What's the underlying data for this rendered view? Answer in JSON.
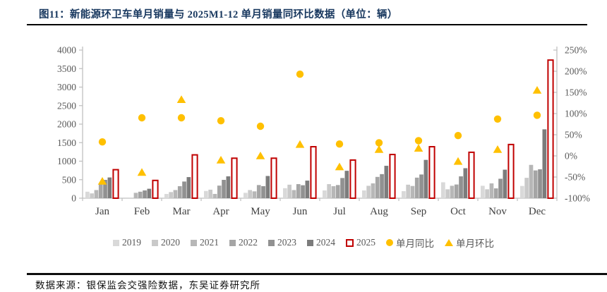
{
  "figure": {
    "title": "图11：新能源环卫车单月销量与 2025M1-12 单月销量同环比数据（单位：辆）",
    "source": "数据来源：银保监会交强险数据，东吴证券研究所"
  },
  "colors": {
    "title": "#17375e",
    "axis_line": "#bfbfbf",
    "axis_text": "#595959",
    "month_text": "#404040",
    "red_2025": "#c00000",
    "yellow_marker": "#ffc000"
  },
  "chart_data": {
    "type": "bar",
    "title": "新能源环卫车单月销量与2025M1-12单月销量同环比数据",
    "categories": [
      "Jan",
      "Feb",
      "Mar",
      "Apr",
      "May",
      "Jun",
      "Jul",
      "Aug",
      "Sep",
      "Oct",
      "Nov",
      "Dec"
    ],
    "series": [
      {
        "name": "2019",
        "type": "bar",
        "axis": "left",
        "color": "#d9d9d9",
        "values": [
          175,
          20,
          115,
          195,
          145,
          270,
          210,
          210,
          190,
          430,
          335,
          330
        ]
      },
      {
        "name": "2020",
        "type": "bar",
        "axis": "left",
        "color": "#c9c9c9",
        "values": [
          130,
          10,
          165,
          230,
          220,
          365,
          380,
          335,
          365,
          240,
          240,
          550
        ]
      },
      {
        "name": "2021",
        "type": "bar",
        "axis": "left",
        "color": "#b7b7b7",
        "values": [
          220,
          145,
          220,
          115,
          185,
          220,
          325,
          400,
          330,
          335,
          400,
          900
        ]
      },
      {
        "name": "2022",
        "type": "bar",
        "axis": "left",
        "color": "#a5a5a5",
        "values": [
          390,
          175,
          325,
          340,
          355,
          380,
          355,
          575,
          555,
          370,
          265,
          750
        ]
      },
      {
        "name": "2023",
        "type": "bar",
        "axis": "left",
        "color": "#919191",
        "values": [
          495,
          210,
          450,
          495,
          325,
          350,
          545,
          650,
          640,
          590,
          525,
          780
        ]
      },
      {
        "name": "2024",
        "type": "bar",
        "axis": "left",
        "color": "#7c7c7c",
        "values": [
          560,
          255,
          570,
          590,
          600,
          475,
          740,
          875,
          1035,
          810,
          770,
          1860
        ]
      },
      {
        "name": "2025",
        "type": "bar",
        "axis": "left",
        "color": "#ffffff",
        "stroke": "#c00000",
        "values": [
          770,
          480,
          1170,
          1080,
          1080,
          1390,
          1030,
          1180,
          1390,
          1240,
          1450,
          3730
        ]
      },
      {
        "name": "单月同比",
        "type": "scatter",
        "marker": "circle",
        "axis": "right",
        "color": "#ffc000",
        "values": [
          33,
          90,
          90,
          83,
          70,
          193,
          28,
          31,
          36,
          48,
          87,
          96
        ]
      },
      {
        "name": "单月环比",
        "type": "scatter",
        "marker": "triangle",
        "axis": "right",
        "color": "#ffc000",
        "values": [
          -60,
          -39,
          133,
          -10,
          0,
          27,
          -26,
          15,
          18,
          -13,
          15,
          155
        ]
      }
    ],
    "left_axis": {
      "min": 0,
      "max": 4000,
      "step": 500,
      "ticks": [
        "0",
        "500",
        "1000",
        "1500",
        "2000",
        "2500",
        "3000",
        "3500",
        "4000"
      ]
    },
    "right_axis": {
      "min": -100,
      "max": 250,
      "step": 50,
      "ticks": [
        "-100%",
        "-50%",
        "0%",
        "50%",
        "100%",
        "150%",
        "200%",
        "250%"
      ]
    },
    "grid": false,
    "legend_position": "bottom"
  }
}
